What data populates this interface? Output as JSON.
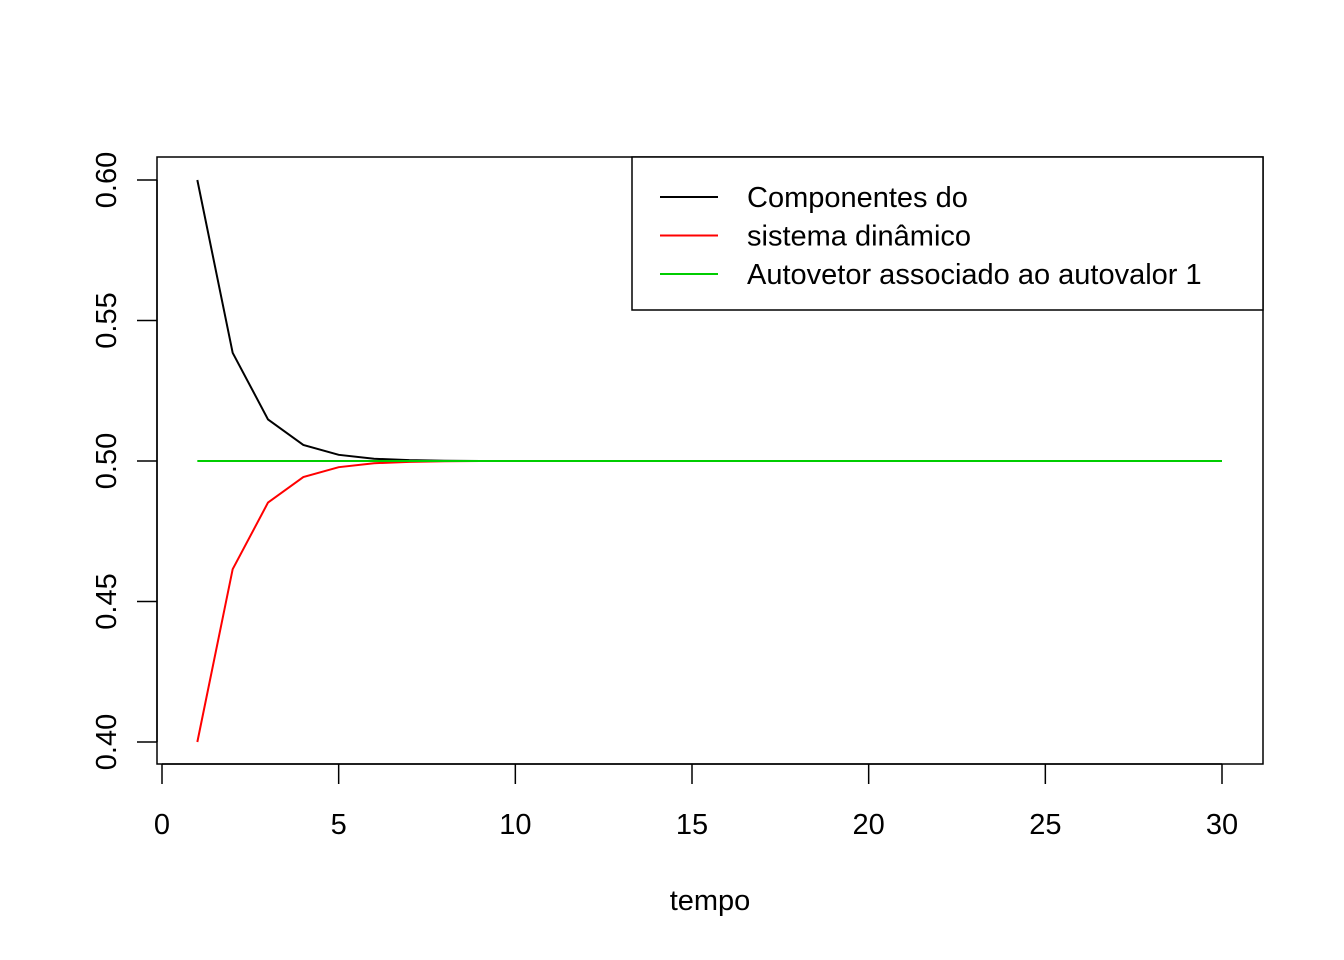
{
  "chart_data": {
    "type": "line",
    "title": "",
    "xlabel": "tempo",
    "ylabel": "",
    "xlim": [
      0,
      30
    ],
    "ylim": [
      0.4,
      0.6
    ],
    "x_ticks": [
      0,
      5,
      10,
      15,
      20,
      25,
      30
    ],
    "x_tick_labels": [
      "0",
      "5",
      "10",
      "15",
      "20",
      "25",
      "30"
    ],
    "y_ticks": [
      0.4,
      0.45,
      0.5,
      0.55,
      0.6
    ],
    "y_tick_labels": [
      "0.40",
      "0.45",
      "0.50",
      "0.55",
      "0.60"
    ],
    "grid": false,
    "legend_position": "top-right",
    "legend": {
      "entries": [
        {
          "label": "Componentes do",
          "color": "#000000"
        },
        {
          "label": "sistema dinâmico",
          "color": "#ff0000"
        },
        {
          "label": "Autovetor associado ao autovalor 1",
          "color": "#00cd00"
        }
      ]
    },
    "x": [
      1,
      2,
      3,
      4,
      5,
      6,
      7,
      8,
      9,
      10,
      11,
      12,
      13,
      14,
      15,
      16,
      17,
      18,
      19,
      20,
      21,
      22,
      23,
      24,
      25,
      26,
      27,
      28,
      29,
      30
    ],
    "series": [
      {
        "color": "#000000",
        "values": [
          0.6,
          0.5385,
          0.5148,
          0.5057,
          0.5022,
          0.5008,
          0.5003,
          0.5001,
          0.5,
          0.5,
          0.5,
          0.5,
          0.5,
          0.5,
          0.5,
          0.5,
          0.5,
          0.5,
          0.5,
          0.5,
          0.5,
          0.5,
          0.5,
          0.5,
          0.5,
          0.5,
          0.5,
          0.5,
          0.5,
          0.5
        ]
      },
      {
        "color": "#ff0000",
        "values": [
          0.4,
          0.4615,
          0.4852,
          0.4943,
          0.4978,
          0.4992,
          0.4997,
          0.4999,
          0.5,
          0.5,
          0.5,
          0.5,
          0.5,
          0.5,
          0.5,
          0.5,
          0.5,
          0.5,
          0.5,
          0.5,
          0.5,
          0.5,
          0.5,
          0.5,
          0.5,
          0.5,
          0.5,
          0.5,
          0.5,
          0.5
        ]
      },
      {
        "color": "#00cd00",
        "values": [
          0.5,
          0.5,
          0.5,
          0.5,
          0.5,
          0.5,
          0.5,
          0.5,
          0.5,
          0.5,
          0.5,
          0.5,
          0.5,
          0.5,
          0.5,
          0.5,
          0.5,
          0.5,
          0.5,
          0.5,
          0.5,
          0.5,
          0.5,
          0.5,
          0.5,
          0.5,
          0.5,
          0.5,
          0.5,
          0.5
        ]
      }
    ]
  }
}
